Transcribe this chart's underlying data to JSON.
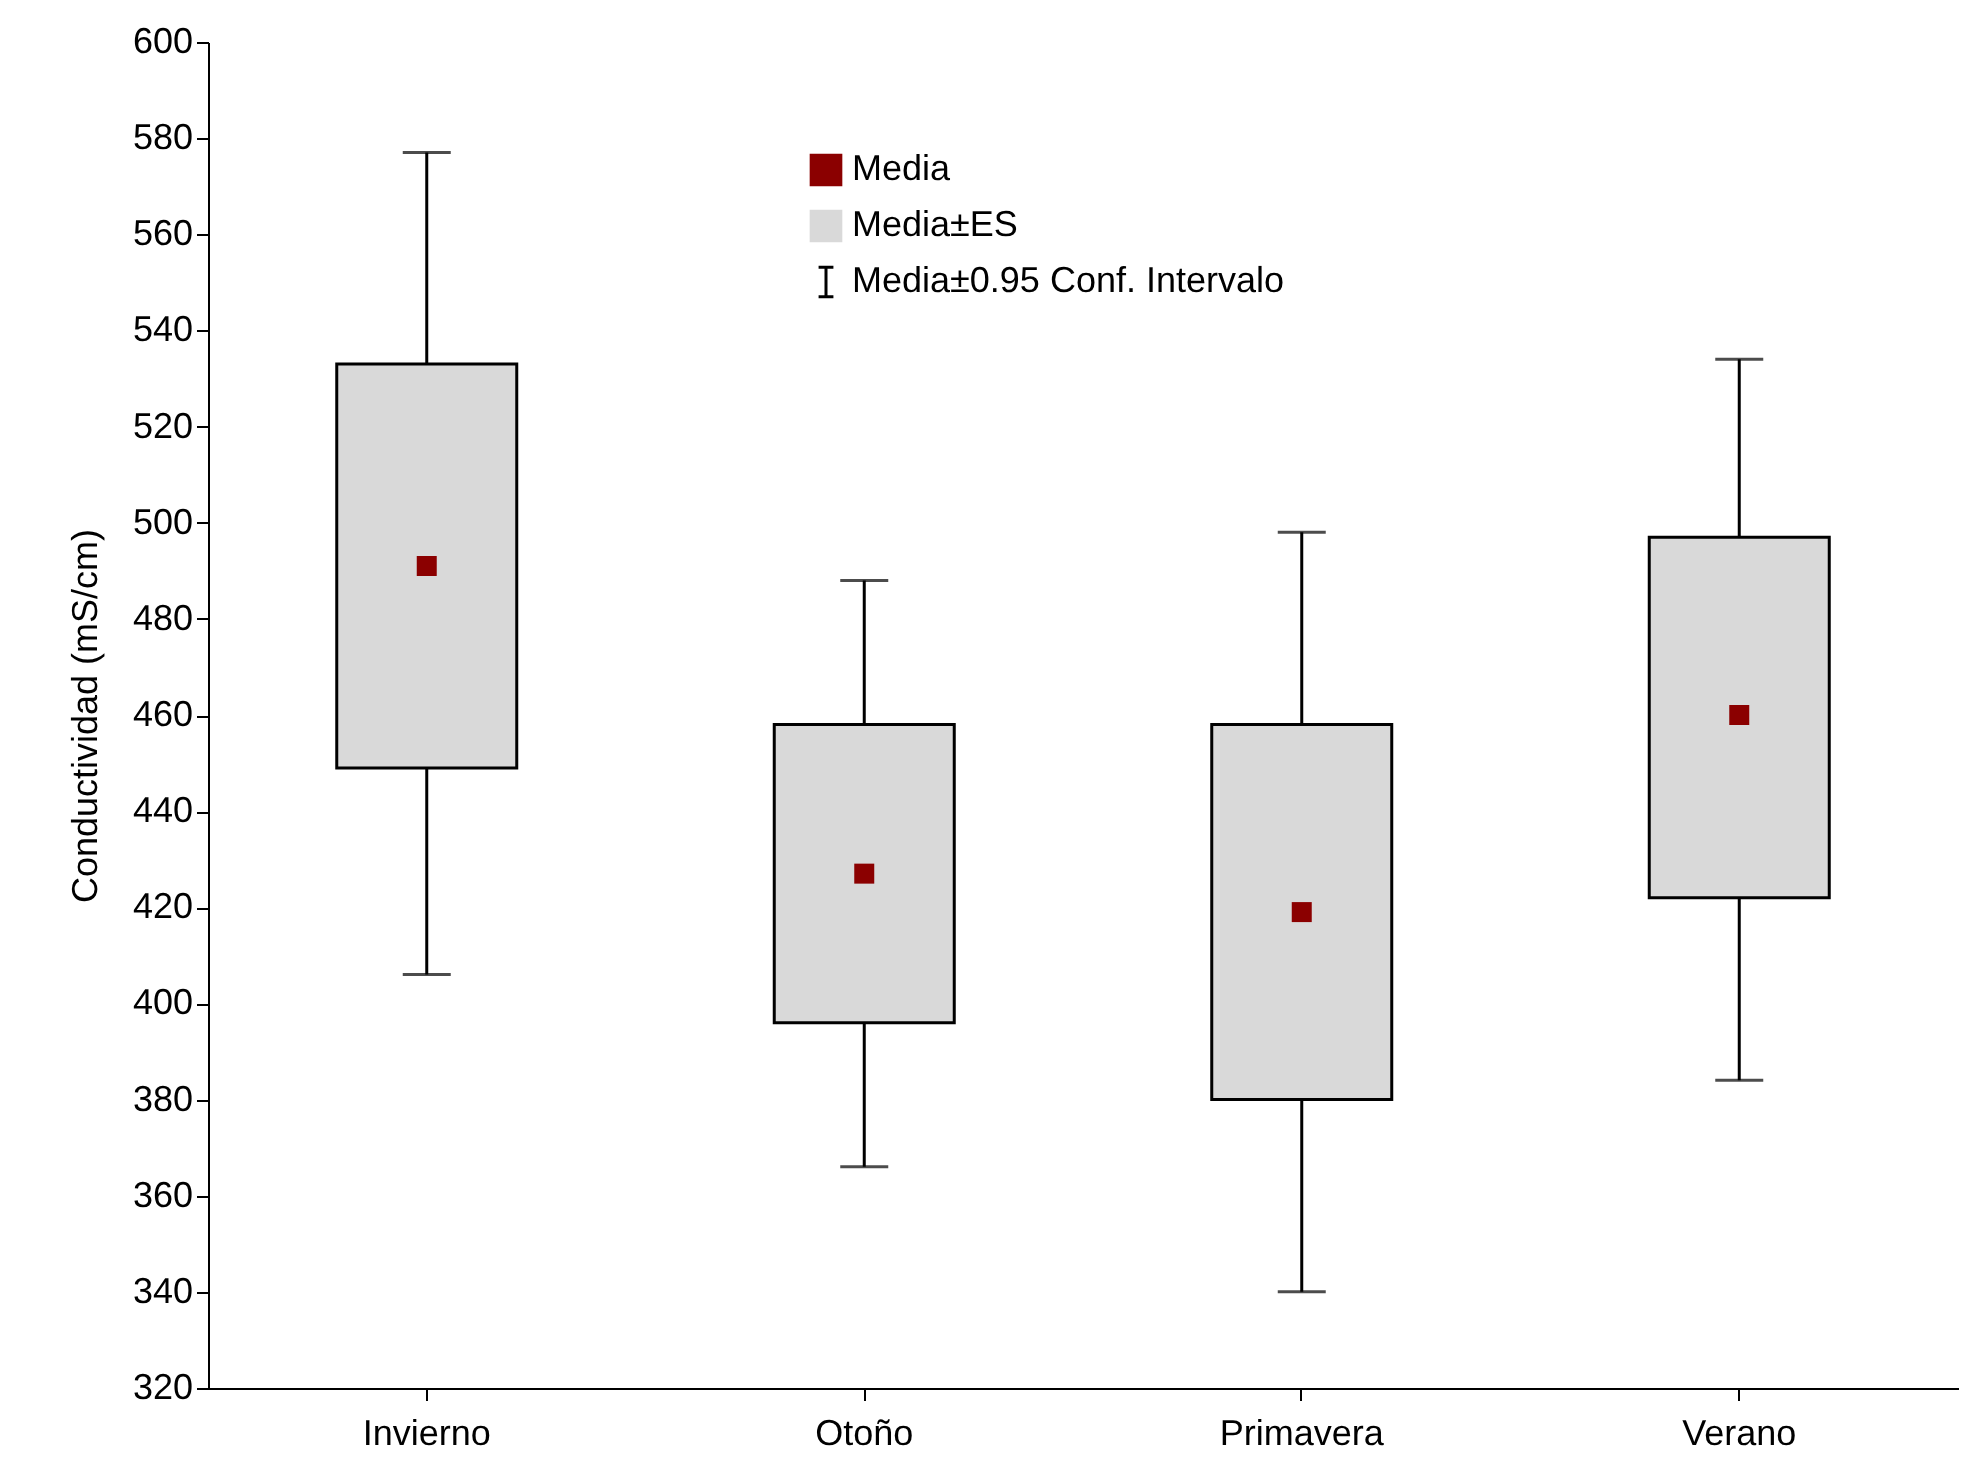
{
  "chart_data": {
    "type": "bar",
    "ylabel": "Conductividad (mS/cm)",
    "categories": [
      "Invierno",
      "Otoño",
      "Primavera",
      "Verano"
    ],
    "ylim": [
      320,
      600
    ],
    "yticks": [
      320,
      340,
      360,
      380,
      400,
      420,
      440,
      460,
      480,
      500,
      520,
      540,
      560,
      580,
      600
    ],
    "legend": "top",
    "grid": false,
    "annotations": [
      "Media±0.95 Conf. Intervalo"
    ],
    "series": [
      {
        "name": "Media",
        "type": "scatter",
        "marker": "square",
        "color": "#8b0000",
        "values": [
          491,
          427,
          419,
          460
        ],
        "errors": [
          [
            406,
            577
          ],
          [
            366,
            488
          ],
          [
            340,
            498
          ],
          [
            384,
            534
          ]
        ]
      },
      {
        "name": "Media±ES",
        "color": "#d9d9d9",
        "base": [
          449,
          396,
          380,
          422
        ],
        "values": [
          84,
          62,
          78,
          75
        ]
      }
    ]
  }
}
